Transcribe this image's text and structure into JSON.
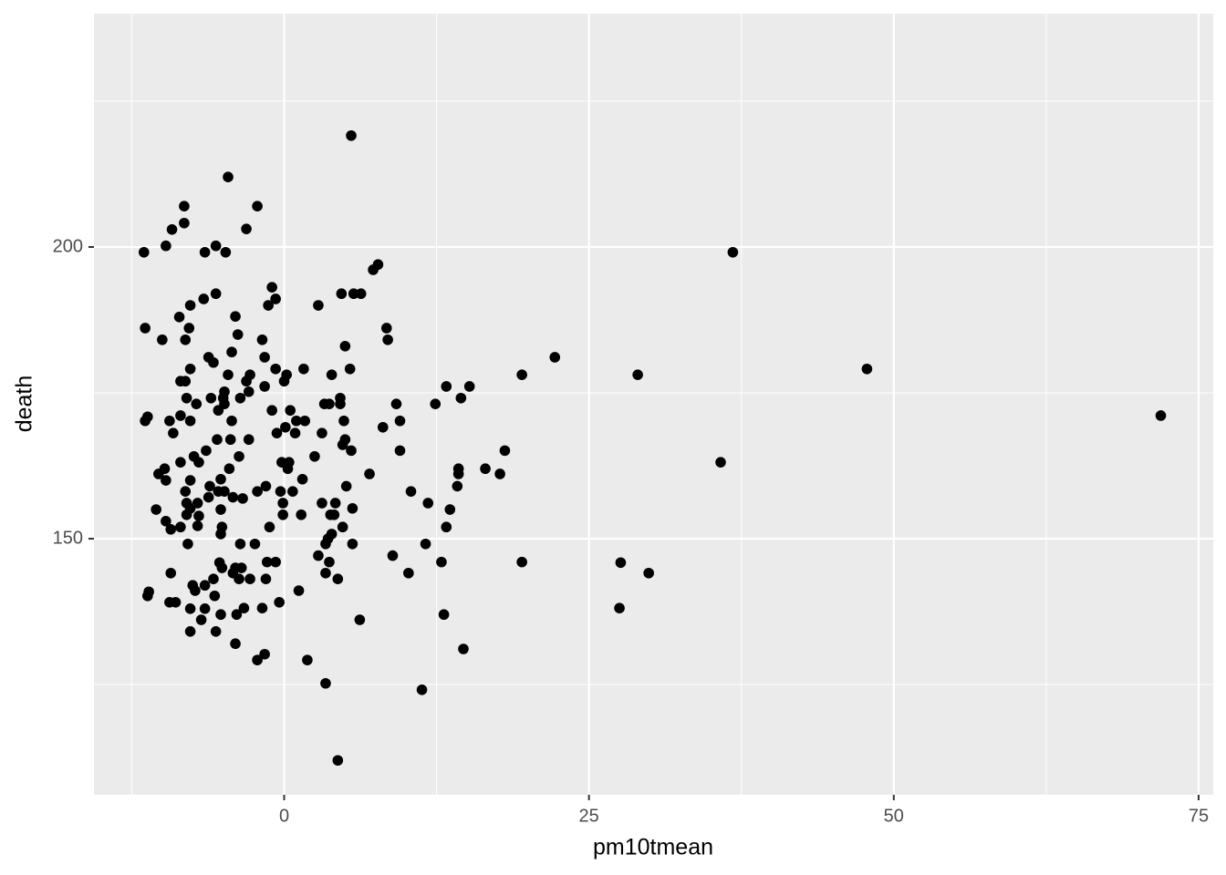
{
  "chart_data": {
    "type": "scatter",
    "x_label": "pm10tmean",
    "y_label": "death",
    "xlim": [
      -15.6,
      76.2
    ],
    "ylim": [
      106.1,
      240
    ],
    "xticks": [
      0,
      25,
      50,
      75
    ],
    "yticks": [
      150,
      200
    ],
    "xminor": [
      -12.5,
      12.5,
      37.5,
      62.5
    ],
    "yminor": [
      125,
      175,
      225
    ],
    "grid": true,
    "color": "#000000",
    "x": [
      -11.5,
      -11.4,
      -11.2,
      -11.4,
      -11.1,
      -11.2,
      -10.5,
      -10.3,
      -10.0,
      -9.8,
      -9.7,
      -9.7,
      -9.7,
      -9.2,
      -9.4,
      -9.1,
      -9.3,
      -9.3,
      -9.4,
      -8.9,
      -8.6,
      -8.5,
      -8.5,
      -8.5,
      -8.5,
      -8.2,
      -8.2,
      -8.1,
      -8.1,
      -8.0,
      -8.1,
      -8.0,
      -8.0,
      -7.9,
      -7.8,
      -7.7,
      -7.7,
      -7.7,
      -7.7,
      -7.7,
      -7.7,
      -7.7,
      -7.5,
      -7.4,
      -7.3,
      -7.2,
      -7.1,
      -7.1,
      -7.0,
      -7.0,
      -6.8,
      -6.5,
      -6.6,
      -6.5,
      -6.5,
      -6.4,
      -6.2,
      -6.2,
      -6.1,
      -6.0,
      -5.8,
      -5.8,
      -5.7,
      -5.6,
      -5.6,
      -5.6,
      -5.5,
      -5.4,
      -5.4,
      -5.3,
      -5.2,
      -5.2,
      -5.2,
      -5.2,
      -5.1,
      -5.1,
      -5.0,
      -4.9,
      -4.9,
      -4.9,
      -4.8,
      -4.6,
      -4.6,
      -4.5,
      -4.4,
      -4.3,
      -4.3,
      -4.2,
      -4.2,
      -4.0,
      -4.0,
      -4.0,
      -3.9,
      -3.8,
      -3.7,
      -3.7,
      -3.6,
      -3.6,
      -3.5,
      -3.4,
      -3.3,
      -3.1,
      -3.1,
      -2.9,
      -2.9,
      -2.8,
      -2.8,
      -2.4,
      -2.2,
      -2.2,
      -2.2,
      -1.8,
      -1.8,
      -1.6,
      -1.6,
      -1.6,
      -1.5,
      -1.5,
      -1.4,
      -1.3,
      -1.2,
      -1.0,
      -1.0,
      -0.7,
      -0.7,
      -0.7,
      -0.6,
      -0.4,
      -0.3,
      -0.2,
      -0.1,
      -0.1,
      0,
      0.1,
      0.2,
      0.3,
      0.4,
      0.5,
      0.7,
      0.9,
      1.0,
      1.2,
      1.4,
      1.5,
      1.6,
      1.7,
      1.9,
      2.5,
      2.8,
      2.8,
      3.1,
      3.1,
      3.3,
      3.4,
      3.4,
      3.4,
      3.6,
      3.7,
      3.7,
      3.8,
      3.9,
      3.9,
      4.1,
      4.2,
      4.4,
      4.4,
      4.6,
      4.6,
      4.7,
      4.8,
      4.8,
      4.9,
      5.0,
      5.0,
      5.1,
      5.4,
      5.5,
      5.5,
      5.6,
      5.6,
      5.7,
      6.2,
      6.3,
      7.0,
      7.3,
      7.7,
      8.1,
      8.4,
      8.5,
      8.9,
      9.2,
      9.5,
      9.5,
      10.2,
      10.4,
      11.3,
      11.6,
      11.8,
      12.4,
      12.9,
      13.1,
      13.3,
      13.3,
      13.6,
      14.2,
      14.3,
      14.3,
      14.5,
      14.7,
      15.2,
      16.5,
      17.7,
      18.1,
      19.5,
      19.5,
      22.2,
      27.5,
      27.6,
      29.0,
      29.9,
      35.8,
      36.8,
      47.8,
      71.9
    ],
    "values": [
      199.1,
      186.1,
      170.9,
      170.2,
      140.9,
      140.2,
      155,
      161.1,
      184.1,
      162,
      160,
      153,
      200.2,
      203,
      170.2,
      168.1,
      151.6,
      144.1,
      139.1,
      139.1,
      188,
      163.1,
      152,
      177,
      171.1,
      207,
      204.1,
      184.1,
      177,
      174.1,
      158.1,
      156.1,
      154.1,
      149.1,
      186.1,
      190,
      179.1,
      170.2,
      160,
      155.2,
      138,
      134.1,
      142,
      164.1,
      141.1,
      173.1,
      156.1,
      152.2,
      153.9,
      163.1,
      136.1,
      199.1,
      191.1,
      142,
      138,
      165.1,
      157.1,
      181.1,
      159,
      174.1,
      180.2,
      143.1,
      140.2,
      200.2,
      192,
      134.1,
      167,
      158.1,
      172,
      145.9,
      155,
      137,
      160.2,
      150.8,
      145,
      152,
      174.1,
      175.2,
      173.1,
      158.1,
      199.1,
      212,
      178.1,
      162,
      167,
      170.2,
      182,
      157.1,
      144.1,
      145,
      188.1,
      132,
      137,
      185,
      164.1,
      143.1,
      149.1,
      174.1,
      145,
      156.9,
      138.1,
      203.1,
      177,
      175.2,
      167,
      178.1,
      143.1,
      149.1,
      207,
      129.2,
      158.1,
      184.1,
      138.1,
      176.1,
      130.2,
      181.1,
      159,
      143.1,
      146,
      190,
      152,
      193.1,
      172,
      191.1,
      179.1,
      146,
      168.1,
      139.1,
      158.1,
      163.1,
      156.1,
      154.1,
      177,
      169.1,
      178.1,
      162,
      163.1,
      172,
      158.1,
      168.1,
      170.2,
      141.1,
      154.1,
      160.2,
      179.1,
      170.2,
      129.2,
      164.1,
      190,
      147.1,
      168.1,
      156.1,
      173.1,
      149.1,
      144.1,
      125.2,
      150,
      173.1,
      146,
      154.1,
      150.8,
      178.1,
      154.1,
      156.1,
      143.1,
      112,
      174.1,
      173.1,
      192,
      166.1,
      152,
      170.2,
      183,
      167,
      159,
      179.1,
      219.1,
      165.1,
      155.2,
      149.1,
      192,
      136.1,
      192,
      161.1,
      196.1,
      197,
      169.1,
      186.1,
      184.1,
      147.1,
      173.1,
      165.1,
      170.2,
      144.1,
      158.1,
      124.1,
      149.1,
      156.1,
      173.1,
      146,
      137,
      152,
      176.1,
      155,
      159,
      162,
      161.1,
      174.1,
      131.1,
      176.1,
      162,
      161.1,
      165.1,
      178.1,
      146,
      181.1,
      138.1,
      145.9,
      178.1,
      144.1,
      163.1,
      199.1,
      179.1,
      171.1
    ]
  }
}
